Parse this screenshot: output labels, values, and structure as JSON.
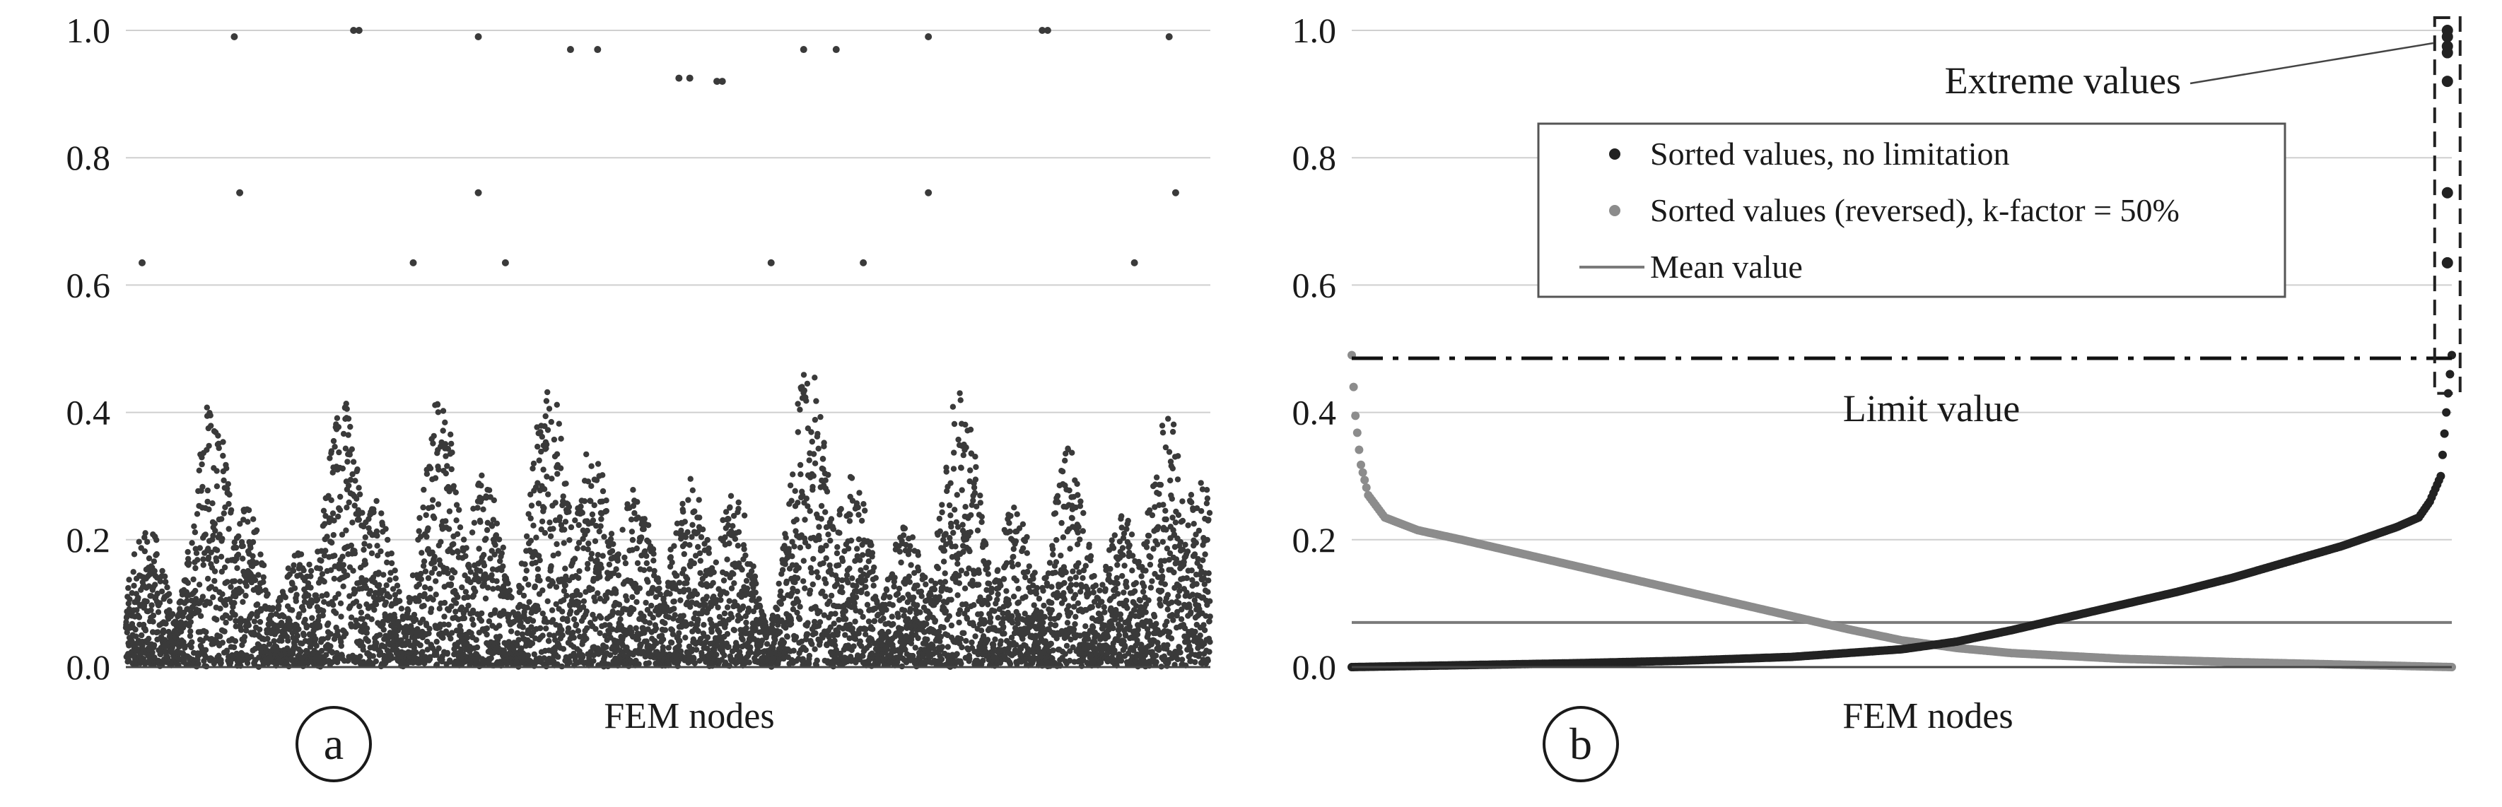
{
  "colors": {
    "dark_series": "#3a3a3a",
    "sorted_dark": "#222222",
    "sorted_gray": "#8c8c8c",
    "mean_line": "#7a7a7a",
    "grid": "#cfcfcf",
    "axis": "#444444"
  },
  "chart_data": [
    {
      "panel": "a",
      "type": "scatter",
      "xlabel": "FEM nodes",
      "ylabel": "",
      "ylim": [
        0,
        1.0
      ],
      "yticks": [
        "0.0",
        "0.2",
        "0.4",
        "0.6",
        "0.8",
        "1.0"
      ],
      "grid": "horizontal",
      "series": [
        {
          "color": "#3a3a3a",
          "description_visible": false,
          "node_count": 6000,
          "bulk_range": [
            0,
            0.46
          ],
          "outliers": [
            {
              "x": 0.015,
              "y": 0.635
            },
            {
              "x": 0.1,
              "y": 0.99
            },
            {
              "x": 0.105,
              "y": 0.745
            },
            {
              "x": 0.21,
              "y": 1.0
            },
            {
              "x": 0.215,
              "y": 1.0
            },
            {
              "x": 0.265,
              "y": 0.635
            },
            {
              "x": 0.325,
              "y": 0.99
            },
            {
              "x": 0.325,
              "y": 0.745
            },
            {
              "x": 0.35,
              "y": 0.635
            },
            {
              "x": 0.41,
              "y": 0.97
            },
            {
              "x": 0.435,
              "y": 0.97
            },
            {
              "x": 0.51,
              "y": 0.925
            },
            {
              "x": 0.52,
              "y": 0.925
            },
            {
              "x": 0.545,
              "y": 0.92
            },
            {
              "x": 0.55,
              "y": 0.92
            },
            {
              "x": 0.595,
              "y": 0.635
            },
            {
              "x": 0.625,
              "y": 0.97
            },
            {
              "x": 0.655,
              "y": 0.97
            },
            {
              "x": 0.68,
              "y": 0.635
            },
            {
              "x": 0.74,
              "y": 0.99
            },
            {
              "x": 0.74,
              "y": 0.745
            },
            {
              "x": 0.845,
              "y": 1.0
            },
            {
              "x": 0.85,
              "y": 1.0
            },
            {
              "x": 0.93,
              "y": 0.635
            },
            {
              "x": 0.962,
              "y": 0.99
            },
            {
              "x": 0.968,
              "y": 0.745
            }
          ]
        }
      ],
      "label": "a"
    },
    {
      "panel": "b",
      "type": "line",
      "xlabel": "FEM nodes",
      "ylabel": "",
      "ylim": [
        0,
        1.0
      ],
      "yticks": [
        "0.0",
        "0.2",
        "0.4",
        "0.6",
        "0.8",
        "1.0"
      ],
      "grid": "horizontal",
      "legend_position": "upper-center",
      "series": [
        {
          "name": "Sorted values, no limitation",
          "color": "#222222",
          "x": [
            0.0,
            0.1,
            0.2,
            0.3,
            0.4,
            0.5,
            0.55,
            0.6,
            0.65,
            0.7,
            0.75,
            0.8,
            0.85,
            0.9,
            0.95,
            0.97,
            0.98,
            0.99,
            0.995,
            1.0
          ],
          "y": [
            0.0,
            0.003,
            0.006,
            0.01,
            0.016,
            0.028,
            0.04,
            0.058,
            0.078,
            0.098,
            0.118,
            0.14,
            0.165,
            0.19,
            0.22,
            0.235,
            0.26,
            0.3,
            0.4,
            0.49
          ],
          "extreme_points": [
            0.635,
            0.745,
            0.92,
            0.965,
            0.975,
            0.99,
            1.0
          ]
        },
        {
          "name": "Sorted values (reversed), k-factor = 50%",
          "color": "#8c8c8c",
          "x": [
            0.0,
            0.003,
            0.008,
            0.015,
            0.03,
            0.06,
            0.1,
            0.15,
            0.2,
            0.25,
            0.3,
            0.35,
            0.4,
            0.45,
            0.5,
            0.55,
            0.6,
            0.7,
            0.8,
            0.9,
            1.0
          ],
          "y": [
            0.49,
            0.4,
            0.32,
            0.27,
            0.235,
            0.215,
            0.2,
            0.18,
            0.16,
            0.14,
            0.12,
            0.1,
            0.08,
            0.06,
            0.042,
            0.03,
            0.022,
            0.013,
            0.008,
            0.004,
            0.0
          ]
        },
        {
          "name": "Mean value",
          "color": "#7a7a7a",
          "y_constant": 0.07
        }
      ],
      "limit_value": 0.485,
      "annotations": {
        "limit_label": "Limit value",
        "extreme_label": "Extreme values"
      },
      "label": "b"
    }
  ]
}
